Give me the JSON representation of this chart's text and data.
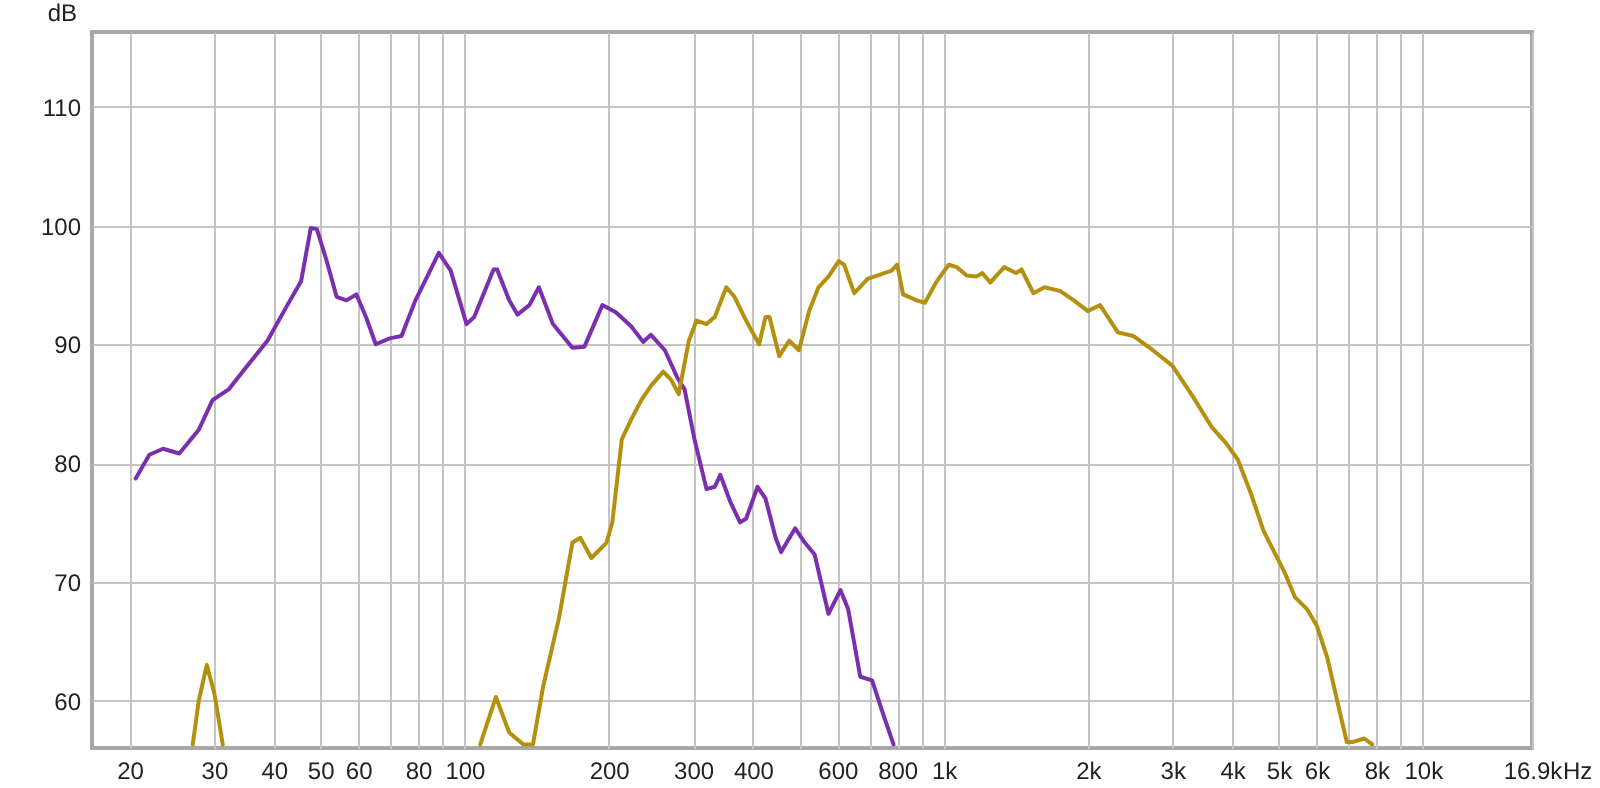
{
  "chart_data": {
    "type": "line",
    "ylabel": "dB",
    "xlabel": "Hz",
    "log": "x",
    "grid": true,
    "marker": "none",
    "line_style": "solid",
    "xlim": [
      16.7,
      16900
    ],
    "ylim": [
      56,
      116.3
    ],
    "xticks": [
      20,
      30,
      40,
      50,
      60,
      {
        "value": 70,
        "label": null
      },
      80,
      {
        "value": 90,
        "label": null
      },
      100,
      200,
      300,
      400,
      {
        "value": 500,
        "label": null
      },
      600,
      {
        "value": 700,
        "label": null
      },
      800,
      {
        "value": 900,
        "label": null
      },
      {
        "value": 1000,
        "label": "1k"
      },
      {
        "value": 2000,
        "label": "2k"
      },
      {
        "value": 3000,
        "label": "3k"
      },
      {
        "value": 4000,
        "label": "4k"
      },
      {
        "value": 5000,
        "label": "5k"
      },
      {
        "value": 6000,
        "label": "6k"
      },
      {
        "value": 7000,
        "label": null
      },
      {
        "value": 8000,
        "label": "8k"
      },
      {
        "value": 9000,
        "label": null
      },
      {
        "value": 10000,
        "label": "10k"
      },
      {
        "value": 16900,
        "label": "16.9k"
      }
    ],
    "yticks": [
      60,
      70,
      80,
      90,
      100,
      110
    ],
    "series": [
      {
        "color": "#7b2fae",
        "x": [
          20.6,
          22,
          23.5,
          25.4,
          27.9,
          29.8,
          32.2,
          35.4,
          38.8,
          42.7,
          45.6,
          47.8,
          49.2,
          51.6,
          54.1,
          56.7,
          59.5,
          62.3,
          65.3,
          69.8,
          73.9,
          79,
          83.6,
          88.4,
          93.6,
          101,
          104.8,
          115,
          117,
          124,
          129,
          136.6,
          143,
          153,
          168,
          178,
          194,
          207,
          223,
          236,
          245,
          262,
          278,
          288,
          302,
          320,
          333,
          342,
          359,
          376,
          387,
          409,
          425,
          446,
          458,
          490,
          513,
          538,
          575,
          609,
          632,
          670,
          709,
          750,
          786
        ],
        "values": [
          78.7,
          80.7,
          81.2,
          80.8,
          82.8,
          85.3,
          86.2,
          88.3,
          90.3,
          93.3,
          95.3,
          99.8,
          99.7,
          97,
          94,
          93.7,
          94.2,
          92.3,
          90,
          90.5,
          90.7,
          93.7,
          95.7,
          97.7,
          96.2,
          91.7,
          92.3,
          96.3,
          96.3,
          93.7,
          92.5,
          93.3,
          94.8,
          91.7,
          89.7,
          89.8,
          93.3,
          92.7,
          91.5,
          90.2,
          90.8,
          89.5,
          87.2,
          86.2,
          82,
          77.8,
          78,
          79,
          76.7,
          75,
          75.3,
          78,
          77,
          73.7,
          72.5,
          74.5,
          73.3,
          72.3,
          67.3,
          69.3,
          67.7,
          62,
          61.7,
          58.7,
          56.3
        ]
      },
      {
        "color": "#b5900e",
        "x": [
          27.1,
          27.9,
          29,
          30.1,
          31.3,
          70,
          107.9,
          116.3,
          124,
          132.8,
          139,
          146,
          157.6,
          168,
          174.6,
          184,
          198,
          203.5,
          213,
          223,
          234,
          245,
          260,
          270,
          280,
          294,
          305,
          320,
          333,
          352,
          366,
          387,
          412,
          425,
          433,
          454,
          476,
          499,
          524,
          548,
          575,
          604,
          620,
          651,
          694,
          779,
          800,
          823,
          879,
          914,
          967,
          1025,
          1065,
          1117,
          1171,
          1204,
          1251,
          1338,
          1416,
          1454,
          1540,
          1623,
          1749,
          1870,
          2000,
          2121,
          2310,
          2487,
          2733,
          3000,
          3300,
          3630,
          3880,
          4110,
          4390,
          4650,
          4970,
          5160,
          5410,
          5730,
          6010,
          6310,
          6740,
          6940,
          7130,
          7550,
          7840
        ],
        "values": [
          56.3,
          60,
          63,
          60.5,
          56.3,
          null,
          56.3,
          60.3,
          57.3,
          56.3,
          56.3,
          61.2,
          67,
          73.3,
          73.7,
          72,
          73.3,
          75,
          82,
          83.7,
          85.3,
          86.5,
          87.7,
          87,
          85.8,
          90.3,
          92,
          91.7,
          92.3,
          94.8,
          94,
          92,
          90,
          92.3,
          92.3,
          89,
          90.3,
          89.5,
          92.8,
          94.8,
          95.7,
          97,
          96.7,
          94.3,
          95.5,
          96.2,
          96.7,
          94.2,
          93.7,
          93.5,
          95.3,
          96.7,
          96.5,
          95.8,
          95.7,
          96,
          95.2,
          96.5,
          96,
          96.3,
          94.3,
          94.8,
          94.5,
          93.7,
          92.8,
          93.3,
          91,
          90.7,
          89.5,
          88.2,
          85.7,
          83,
          81.7,
          80.3,
          77.3,
          74.3,
          72,
          70.7,
          68.7,
          67.7,
          66.3,
          63.7,
          58.7,
          56.5,
          56.5,
          56.8,
          56.3
        ]
      }
    ]
  }
}
